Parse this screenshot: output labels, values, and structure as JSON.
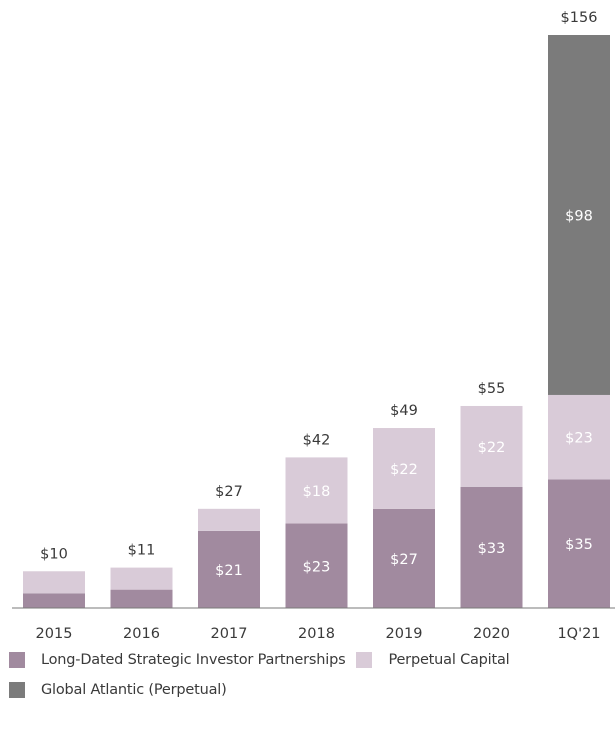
{
  "chart_data": {
    "type": "bar",
    "stacked": true,
    "categories": [
      "2015",
      "2016",
      "2017",
      "2018",
      "2019",
      "2020",
      "1Q'21"
    ],
    "series": [
      {
        "name": "Long-Dated Strategic Investor Partnerships",
        "color": "#a18a9f",
        "values": [
          4,
          5,
          21,
          23,
          27,
          33,
          35
        ],
        "labels": [
          "",
          "",
          "$21",
          "$23",
          "$27",
          "$33",
          "$35"
        ]
      },
      {
        "name": "Perpetual Capital",
        "color": "#d9cbd8",
        "values": [
          6,
          6,
          6,
          18,
          22,
          22,
          23
        ],
        "labels": [
          "",
          "",
          "",
          "$18",
          "$22",
          "$22",
          "$23"
        ]
      },
      {
        "name": "Global Atlantic (Perpetual)",
        "color": "#7b7b7b",
        "values": [
          0,
          0,
          0,
          0,
          0,
          0,
          98
        ],
        "labels": [
          "",
          "",
          "",
          "",
          "",
          "",
          "$98"
        ]
      }
    ],
    "totals": [
      "$10",
      "$11",
      "$27",
      "$42",
      "$49",
      "$55",
      "$156"
    ],
    "ylim": [
      0,
      156
    ],
    "legend_position": "bottom",
    "grid": false
  }
}
